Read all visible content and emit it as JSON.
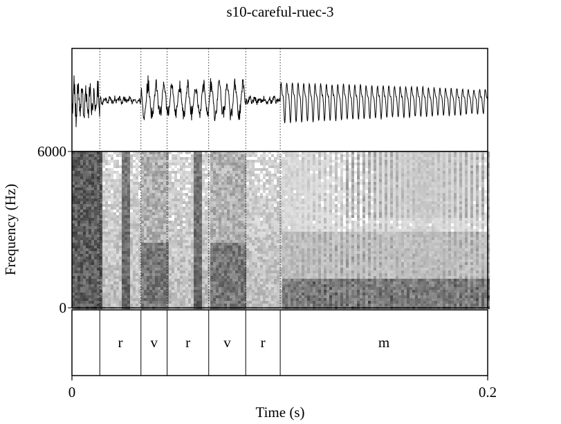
{
  "chart_data": {
    "type": "spectrogram",
    "title": "s10-careful-ruec-3",
    "xlabel": "Time (s)",
    "ylabel": "Frequency (Hz)",
    "xlim": [
      0,
      0.2
    ],
    "ylim": [
      0,
      6000
    ],
    "x_ticks": [
      {
        "value": 0,
        "label": "0"
      },
      {
        "value": 0.2,
        "label": "0.2"
      }
    ],
    "y_ticks": [
      {
        "value": 6000,
        "label": "6000"
      },
      {
        "value": 0,
        "label": "0"
      }
    ],
    "boundaries_s": [
      0.0134,
      0.0332,
      0.0458,
      0.0658,
      0.0836,
      0.1002
    ],
    "segments": [
      {
        "label": "r",
        "start": 0.0134,
        "end": 0.0332
      },
      {
        "label": "v",
        "start": 0.0332,
        "end": 0.0458
      },
      {
        "label": "r",
        "start": 0.0458,
        "end": 0.0658
      },
      {
        "label": "v",
        "start": 0.0658,
        "end": 0.0836
      },
      {
        "label": "r",
        "start": 0.0836,
        "end": 0.1002
      },
      {
        "label": "m",
        "start": 0.1002,
        "end": 0.2
      }
    ]
  }
}
